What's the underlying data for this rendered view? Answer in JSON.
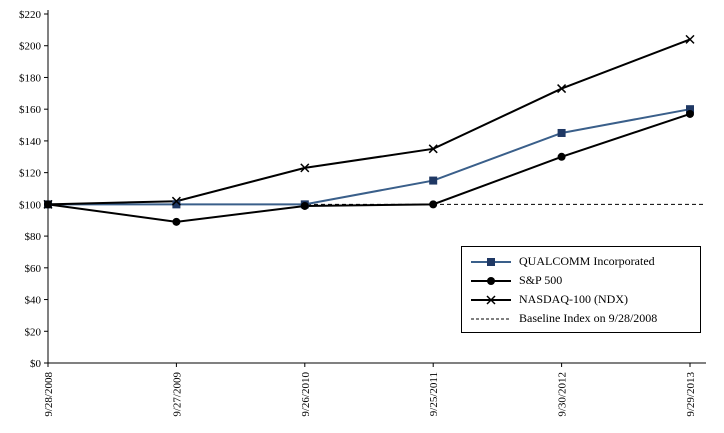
{
  "chart_data": {
    "type": "line",
    "title": "",
    "xlabel": "",
    "ylabel": "",
    "ylim": [
      0,
      220
    ],
    "ytick_step": 20,
    "y_tick_prefix": "$",
    "y_ticks": [
      0,
      20,
      40,
      60,
      80,
      100,
      120,
      140,
      160,
      180,
      200,
      220
    ],
    "x_labels": [
      "9/28/2008",
      "9/27/2009",
      "9/26/2010",
      "9/25/2011",
      "9/30/2012",
      "9/29/2013"
    ],
    "series": [
      {
        "name": "QUALCOMM Incorporated",
        "marker": "square",
        "color": "#3a5f8a",
        "marker_color": "#1f3864",
        "values": [
          100,
          100,
          100,
          115,
          145,
          160
        ]
      },
      {
        "name": "S&P 500",
        "marker": "circle",
        "color": "#000000",
        "marker_color": "#000000",
        "values": [
          100,
          89,
          99,
          100,
          130,
          157
        ]
      },
      {
        "name": "NASDAQ-100 (NDX)",
        "marker": "x",
        "color": "#000000",
        "marker_color": "#000000",
        "values": [
          100,
          102,
          123,
          135,
          173,
          204
        ]
      }
    ],
    "baseline": {
      "name": "Baseline Index on 9/28/2008",
      "value": 100,
      "style": "dashed",
      "color": "#000000"
    },
    "legend_position": "lower-right",
    "grid": "off"
  }
}
